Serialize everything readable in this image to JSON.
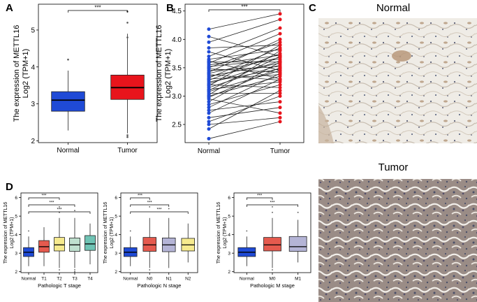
{
  "panel_labels": {
    "a": "A",
    "b": "B",
    "c": "C",
    "d": "D"
  },
  "histology": {
    "normal_title": "Normal",
    "tumor_title": "Tumor"
  },
  "colors": {
    "normal": "#1f4ad6",
    "tumor": "#e8141c",
    "T1": "#e55a4e",
    "T2": "#f6ea8e",
    "T3": "#bfe0cf",
    "T4": "#6fc3b4",
    "N0": "#e55a4e",
    "N1": "#b4b4d6",
    "N2": "#f6ea8e",
    "M0": "#e55a4e",
    "M1": "#b4b4d6",
    "normal_small": "#3399cc"
  },
  "chart_data": [
    {
      "id": "A",
      "type": "box",
      "ylabel": "The expression of METTL16",
      "ylabel2": "Log2 (TPM+1)",
      "categories": [
        "Normal",
        "Tumor"
      ],
      "ylim": [
        1.95,
        5.7
      ],
      "yticks": [
        2,
        3,
        4,
        5
      ],
      "boxes": [
        {
          "q1": 2.8,
          "median": 3.1,
          "q3": 3.33,
          "whisker_low": 2.28,
          "whisker_high": 3.9,
          "outliers": [
            4.2
          ]
        },
        {
          "q1": 3.12,
          "median": 3.44,
          "q3": 3.78,
          "whisker_low": 2.2,
          "whisker_high": 4.9,
          "outliers": [
            5.5,
            5.2,
            4.8,
            2.15,
            2.1
          ]
        }
      ],
      "significance": [
        {
          "from": "Normal",
          "to": "Tumor",
          "label": "***"
        }
      ]
    },
    {
      "id": "B",
      "type": "paired",
      "ylabel": "The expression of METTL16",
      "ylabel2": "Log2 (TPM+1)",
      "categories": [
        "Normal",
        "Tumor"
      ],
      "ylim": [
        2.18,
        4.62
      ],
      "yticks": [
        2.5,
        3.0,
        3.5,
        4.0,
        4.5
      ],
      "normal": [
        2.25,
        2.42,
        2.5,
        2.55,
        2.62,
        2.7,
        2.75,
        2.8,
        2.85,
        2.9,
        2.95,
        2.98,
        3.0,
        3.02,
        3.05,
        3.08,
        3.1,
        3.12,
        3.15,
        3.18,
        3.2,
        3.22,
        3.25,
        3.28,
        3.3,
        3.32,
        3.35,
        3.38,
        3.4,
        3.42,
        3.45,
        3.48,
        3.5,
        3.52,
        3.55,
        3.58,
        3.6,
        3.62,
        3.65,
        3.7,
        3.78,
        3.85,
        3.95,
        4.05,
        4.18
      ],
      "tumor": [
        2.55,
        3.1,
        2.62,
        3.0,
        2.8,
        3.3,
        2.9,
        3.4,
        3.2,
        3.6,
        2.7,
        3.5,
        3.35,
        3.8,
        3.05,
        3.45,
        3.7,
        3.25,
        3.55,
        3.9,
        3.15,
        3.62,
        3.48,
        3.75,
        3.38,
        3.85,
        3.58,
        3.28,
        3.68,
        4.0,
        3.52,
        3.42,
        3.95,
        3.65,
        3.72,
        4.1,
        3.6,
        3.3,
        3.82,
        4.2,
        3.45,
        3.9,
        4.35,
        3.7,
        4.45
      ],
      "significance": [
        {
          "from": "Normal",
          "to": "Tumor",
          "label": "***"
        }
      ]
    },
    {
      "id": "D1",
      "type": "box",
      "ylabel": "The expression of METTL16",
      "ylabel2": "Log2 (TPM+1)",
      "xlabel": "Pathologic T stage",
      "categories": [
        "Normal",
        "T1",
        "T2",
        "T3",
        "T4"
      ],
      "ylim": [
        1.95,
        6.25
      ],
      "yticks": [
        2,
        3,
        4,
        5,
        6
      ],
      "boxes": [
        {
          "q1": 2.82,
          "median": 3.05,
          "q3": 3.3,
          "whisker_low": 2.3,
          "whisker_high": 3.9,
          "outliers": [
            4.2
          ]
        },
        {
          "q1": 3.05,
          "median": 3.35,
          "q3": 3.68,
          "whisker_low": 2.3,
          "whisker_high": 4.4,
          "outliers": []
        },
        {
          "q1": 3.12,
          "median": 3.45,
          "q3": 3.85,
          "whisker_low": 2.2,
          "whisker_high": 4.9,
          "outliers": [
            5.2,
            5.5,
            2.1
          ]
        },
        {
          "q1": 3.1,
          "median": 3.45,
          "q3": 3.82,
          "whisker_low": 2.2,
          "whisker_high": 4.9,
          "outliers": [
            5.3,
            2.1,
            2.0
          ]
        },
        {
          "q1": 3.15,
          "median": 3.5,
          "q3": 3.95,
          "whisker_low": 2.4,
          "whisker_high": 4.6,
          "outliers": []
        }
      ],
      "significance": [
        {
          "from": "Normal",
          "to": "T2",
          "label": "***"
        },
        {
          "from": "Normal",
          "to": "T3",
          "label": "***"
        },
        {
          "from": "Normal",
          "to": "T4",
          "label": "***"
        }
      ]
    },
    {
      "id": "D2",
      "type": "box",
      "ylabel": "The expression of METTL16",
      "ylabel2": "Log2 (TPM+1)",
      "xlabel": "Pathologic N stage",
      "categories": [
        "Normal",
        "N0",
        "N1",
        "N2"
      ],
      "ylim": [
        1.95,
        6.25
      ],
      "yticks": [
        2,
        3,
        4,
        5,
        6
      ],
      "boxes": [
        {
          "q1": 2.82,
          "median": 3.05,
          "q3": 3.3,
          "whisker_low": 2.3,
          "whisker_high": 3.9,
          "outliers": [
            4.2
          ]
        },
        {
          "q1": 3.1,
          "median": 3.45,
          "q3": 3.85,
          "whisker_low": 2.2,
          "whisker_high": 4.9,
          "outliers": [
            5.5,
            2.1
          ]
        },
        {
          "q1": 3.08,
          "median": 3.45,
          "q3": 3.82,
          "whisker_low": 2.2,
          "whisker_high": 4.9,
          "outliers": [
            5.4
          ]
        },
        {
          "q1": 3.12,
          "median": 3.45,
          "q3": 3.8,
          "whisker_low": 2.5,
          "whisker_high": 4.6,
          "outliers": []
        }
      ],
      "significance": [
        {
          "from": "Normal",
          "to": "N0",
          "label": "***"
        },
        {
          "from": "Normal",
          "to": "N1",
          "label": "***"
        },
        {
          "from": "Normal",
          "to": "N2",
          "label": "***"
        }
      ]
    },
    {
      "id": "D3",
      "type": "box",
      "ylabel": "The expression of METTL16",
      "ylabel2": "Log2 (TPM+1)",
      "xlabel": "Pathologic M stage",
      "categories": [
        "Normal",
        "M0",
        "M1"
      ],
      "ylim": [
        1.95,
        6.25
      ],
      "yticks": [
        2,
        3,
        4,
        5,
        6
      ],
      "boxes": [
        {
          "q1": 2.82,
          "median": 3.05,
          "q3": 3.3,
          "whisker_low": 2.3,
          "whisker_high": 3.9,
          "outliers": [
            4.2
          ]
        },
        {
          "q1": 3.12,
          "median": 3.45,
          "q3": 3.85,
          "whisker_low": 2.2,
          "whisker_high": 4.9,
          "outliers": [
            5.5,
            5.2,
            2.1
          ]
        },
        {
          "q1": 3.1,
          "median": 3.35,
          "q3": 3.9,
          "whisker_low": 2.5,
          "whisker_high": 4.8,
          "outliers": [
            5.2
          ]
        }
      ],
      "significance": [
        {
          "from": "Normal",
          "to": "M0",
          "label": "***"
        },
        {
          "from": "Normal",
          "to": "M1",
          "label": "***"
        }
      ]
    }
  ]
}
